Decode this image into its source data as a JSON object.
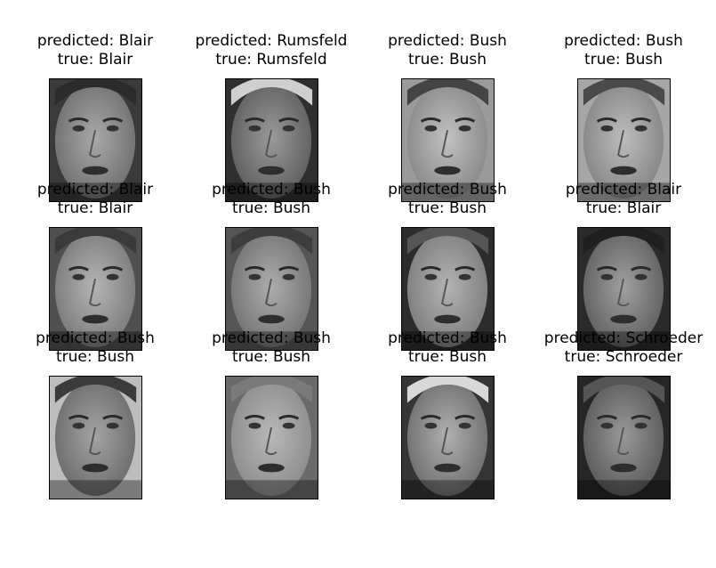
{
  "figure": {
    "panels": [
      {
        "predicted": "predicted: Blair",
        "true": "true: Blair",
        "tone": "#6f6f6f",
        "skin": "#a9a9a9",
        "bg": "#3a3a3a",
        "hair": "#2b2b2b",
        "icon": "face-photo-icon"
      },
      {
        "predicted": "predicted: Rumsfeld",
        "true": "true: Rumsfeld",
        "tone": "#5e5e5e",
        "skin": "#9a9a9a",
        "bg": "#2f2f2f",
        "hair": "#cfcfcf",
        "icon": "face-photo-icon"
      },
      {
        "predicted": "predicted: Bush",
        "true": "true: Bush",
        "tone": "#888888",
        "skin": "#c2c2c2",
        "bg": "#9a9a9a",
        "hair": "#444444",
        "icon": "face-photo-icon"
      },
      {
        "predicted": "predicted: Bush",
        "true": "true: Bush",
        "tone": "#858585",
        "skin": "#bdbdbd",
        "bg": "#a6a6a6",
        "hair": "#4a4a4a",
        "icon": "face-photo-icon"
      },
      {
        "predicted": "predicted: Blair",
        "true": "true: Blair",
        "tone": "#7a7a7a",
        "skin": "#b5b5b5",
        "bg": "#4f4f4f",
        "hair": "#3a3a3a",
        "icon": "face-photo-icon"
      },
      {
        "predicted": "predicted: Bush",
        "true": "true: Bush",
        "tone": "#737373",
        "skin": "#adadad",
        "bg": "#555555",
        "hair": "#3d3d3d",
        "icon": "face-photo-icon"
      },
      {
        "predicted": "predicted: Bush",
        "true": "true: Bush",
        "tone": "#7d7d7d",
        "skin": "#b3b3b3",
        "bg": "#2c2c2c",
        "hair": "#555555",
        "icon": "face-photo-icon"
      },
      {
        "predicted": "predicted: Blair",
        "true": "true: Blair",
        "tone": "#606060",
        "skin": "#a0a0a0",
        "bg": "#2a2a2a",
        "hair": "#1f1f1f",
        "icon": "face-photo-icon"
      },
      {
        "predicted": "predicted: Bush",
        "true": "true: Bush",
        "tone": "#6c6c6c",
        "skin": "#a3a3a3",
        "bg": "#bdbdbd",
        "hair": "#3b3b3b",
        "icon": "face-photo-icon"
      },
      {
        "predicted": "predicted: Bush",
        "true": "true: Bush",
        "tone": "#8c8c8c",
        "skin": "#b8b8b8",
        "bg": "#6a6a6a",
        "hair": "#7a7a7a",
        "icon": "face-photo-icon"
      },
      {
        "predicted": "predicted: Bush",
        "true": "true: Bush",
        "tone": "#6e6e6e",
        "skin": "#b0b0b0",
        "bg": "#353535",
        "hair": "#d8d8d8",
        "icon": "face-photo-icon"
      },
      {
        "predicted": "predicted: Schroeder",
        "true": "true: Schroeder",
        "tone": "#5a5a5a",
        "skin": "#999999",
        "bg": "#262626",
        "hair": "#555555",
        "icon": "face-photo-icon"
      }
    ]
  }
}
